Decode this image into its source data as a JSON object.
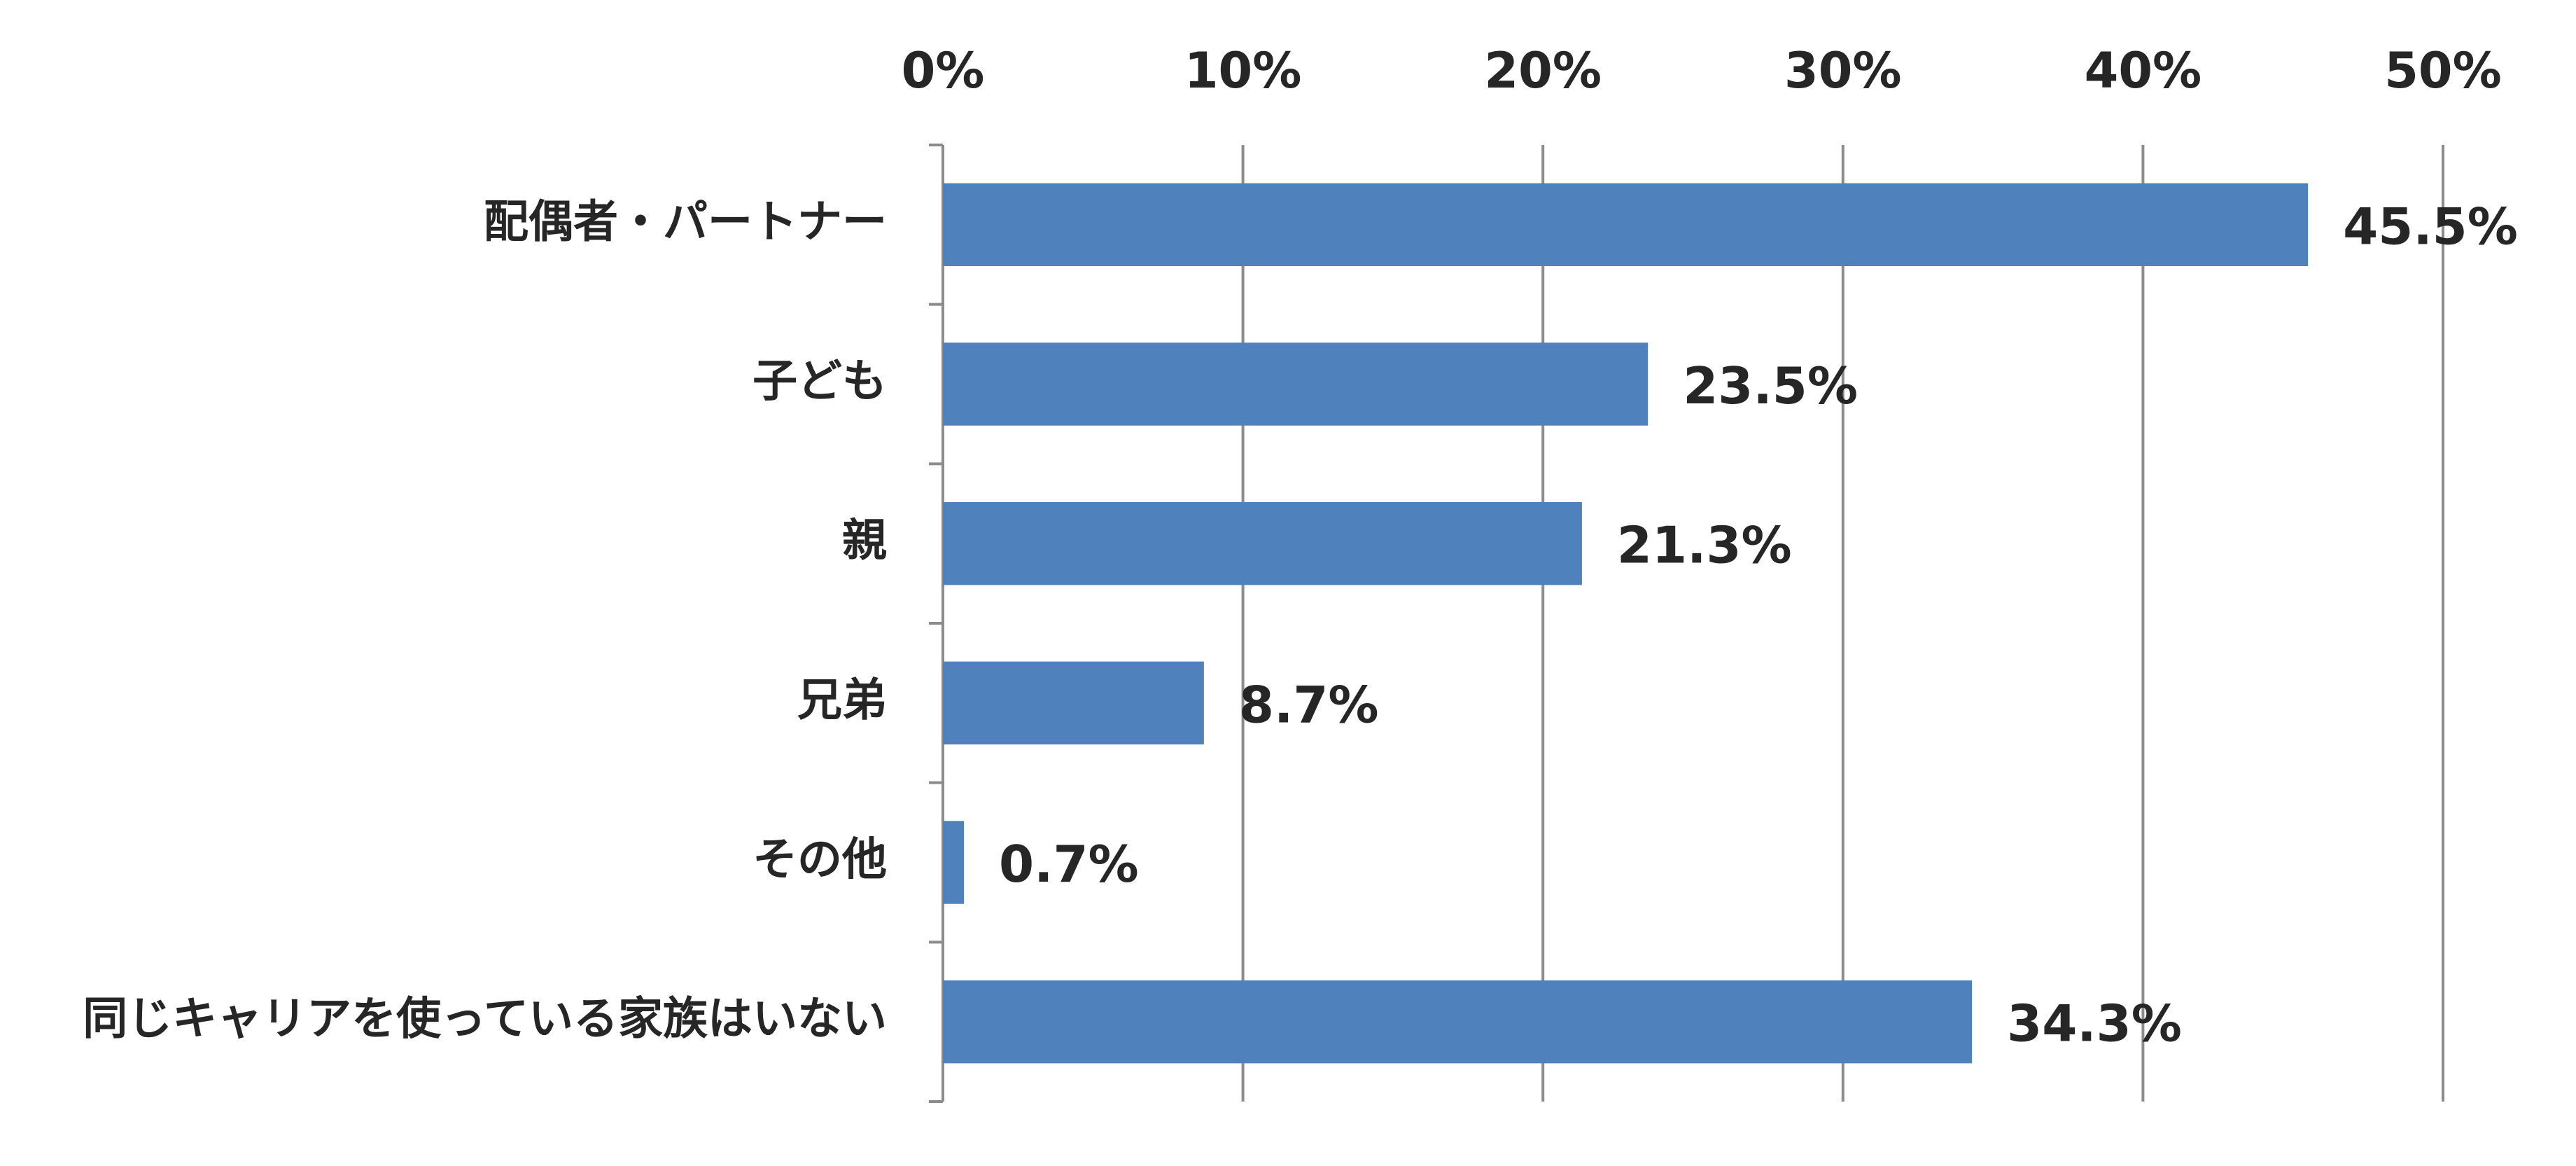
{
  "chart_data": {
    "type": "bar",
    "orientation": "horizontal",
    "categories": [
      "配偶者・パートナー",
      "子ども",
      "親",
      "兄弟",
      "その他",
      "同じキャリアを使っている家族はいない"
    ],
    "values": [
      45.5,
      23.5,
      21.3,
      8.7,
      0.7,
      34.3
    ],
    "value_labels": [
      "45.5%",
      "23.5%",
      "21.3%",
      "8.7%",
      "0.7%",
      "34.3%"
    ],
    "color": "#4f81bd",
    "xlim": [
      0,
      50
    ],
    "xticks": [
      {
        "value": 0,
        "label": "0%"
      },
      {
        "value": 10,
        "label": "10%"
      },
      {
        "value": 20,
        "label": "20%"
      },
      {
        "value": 30,
        "label": "30%"
      },
      {
        "value": 40,
        "label": "40%"
      },
      {
        "value": 50,
        "label": "50%"
      }
    ],
    "grid": true
  }
}
